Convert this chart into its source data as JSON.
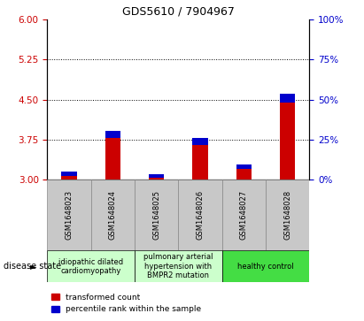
{
  "title": "GDS5610 / 7904967",
  "samples": [
    "GSM1648023",
    "GSM1648024",
    "GSM1648025",
    "GSM1648026",
    "GSM1648027",
    "GSM1648028"
  ],
  "red_values": [
    3.07,
    3.78,
    3.04,
    3.65,
    3.2,
    4.45
  ],
  "blue_values": [
    0.08,
    0.13,
    0.06,
    0.13,
    0.08,
    0.15
  ],
  "baseline": 3.0,
  "ylim_left": [
    3.0,
    6.0
  ],
  "ylim_right": [
    0,
    100
  ],
  "yticks_left": [
    3.0,
    3.75,
    4.5,
    5.25,
    6.0
  ],
  "yticks_right": [
    0,
    25,
    50,
    75,
    100
  ],
  "hlines": [
    3.75,
    4.5,
    5.25
  ],
  "left_tick_color": "#cc0000",
  "right_tick_color": "#0000cc",
  "bar_red": "#cc0000",
  "bar_blue": "#0000cc",
  "cell_gray": "#c8c8c8",
  "cell_gray_edge": "#888888",
  "disease_groups": [
    {
      "label": "idiopathic dilated\ncardiomyopathy",
      "indices": [
        0,
        1
      ],
      "color": "#ccffcc"
    },
    {
      "label": "pulmonary arterial\nhypertension with\nBMPR2 mutation",
      "indices": [
        2,
        3
      ],
      "color": "#ccffcc"
    },
    {
      "label": "healthy control",
      "indices": [
        4,
        5
      ],
      "color": "#44dd44"
    }
  ],
  "legend_red": "transformed count",
  "legend_blue": "percentile rank within the sample",
  "disease_state_label": "disease state",
  "bar_width": 0.35,
  "title_fontsize": 9,
  "tick_fontsize": 7.5,
  "sample_fontsize": 6,
  "group_fontsize": 6,
  "legend_fontsize": 6.5,
  "disease_label_fontsize": 7
}
